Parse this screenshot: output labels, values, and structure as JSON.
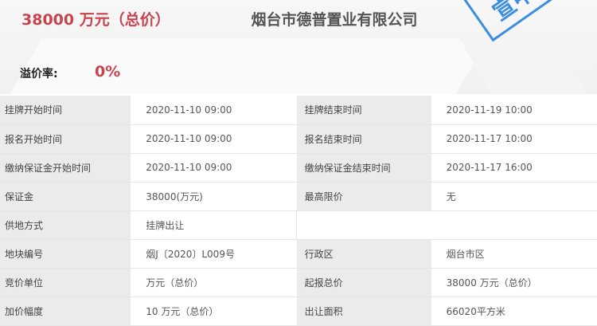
{
  "header": {
    "price": "38000 万元（总价）",
    "company": "烟台市德普置业有限公司",
    "premium_label": "溢价率:",
    "premium_value": "0%",
    "stamp_text": "宣中"
  },
  "rows": [
    [
      {
        "label": "挂牌开始时间",
        "value": "2020-11-10 09:00"
      },
      {
        "label": "挂牌结束时间",
        "value": "2020-11-19 10:00"
      }
    ],
    [
      {
        "label": "报名开始时间",
        "value": "2020-11-10 09:00"
      },
      {
        "label": "报名结束时间",
        "value": "2020-11-17 10:00"
      }
    ],
    [
      {
        "label": "缴纳保证金开始时间",
        "value": "2020-11-10 09:00"
      },
      {
        "label": "缴纳保证金结束时间",
        "value": "2020-11-17 16:00"
      }
    ],
    [
      {
        "label": "保证金",
        "value": "38000(万元)"
      },
      {
        "label": "最高限价",
        "value": "无"
      }
    ],
    [
      {
        "label": "供地方式",
        "value": "挂牌出让"
      }
    ],
    [
      {
        "label": "地块编号",
        "value": "烟J〔2020〕L009号"
      },
      {
        "label": "行政区",
        "value": "烟台市区"
      }
    ],
    [
      {
        "label": "竞价单位",
        "value": "万元（总价）"
      },
      {
        "label": "起报总价",
        "value": "38000 万元（总价）"
      }
    ],
    [
      {
        "label": "加价幅度",
        "value": "10 万元（总价）"
      },
      {
        "label": "出让面积",
        "value": "66020平方米"
      }
    ]
  ]
}
